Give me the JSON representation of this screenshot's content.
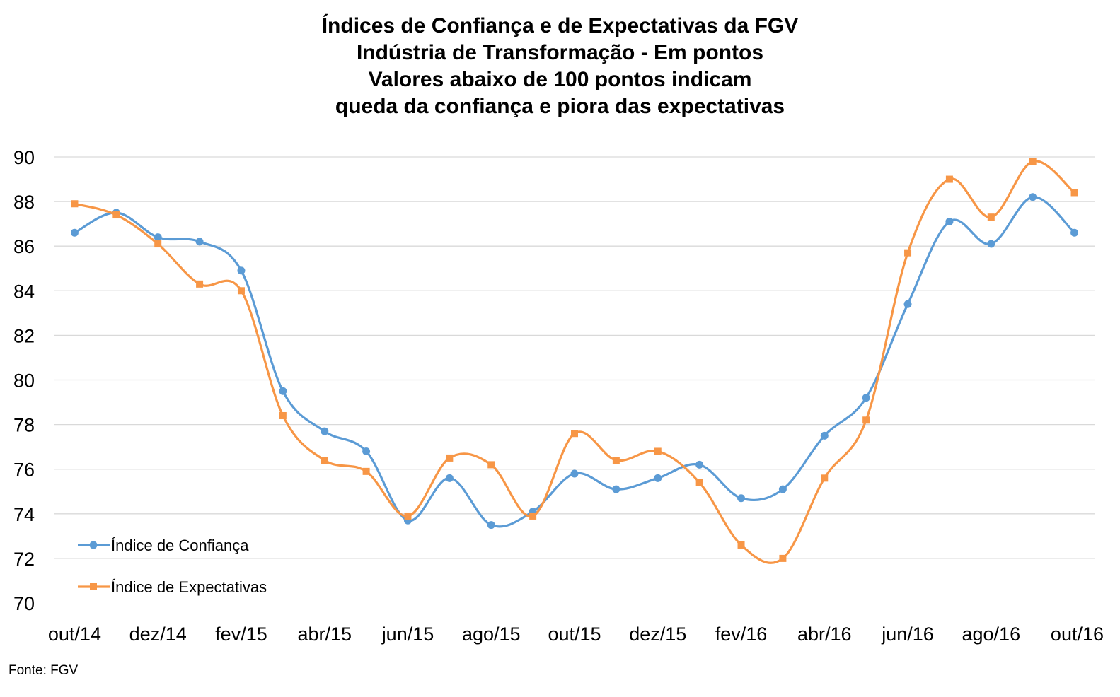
{
  "chart_data": {
    "type": "line",
    "title_lines": [
      "Índices de Confiança e de Expectativas da FGV",
      "Indústria de Transformação - Em pontos",
      "Valores abaixo de 100 pontos indicam",
      "queda da confiança e piora das expectativas"
    ],
    "categories": [
      "out/14",
      "nov/14",
      "dez/14",
      "jan/15",
      "fev/15",
      "mar/15",
      "abr/15",
      "mai/15",
      "jun/15",
      "jul/15",
      "ago/15",
      "set/15",
      "out/15",
      "nov/15",
      "dez/15",
      "jan/16",
      "fev/16",
      "mar/16",
      "abr/16",
      "mai/16",
      "jun/16",
      "jul/16",
      "ago/16",
      "set/16",
      "out/16"
    ],
    "x_tick_labels": [
      "out/14",
      "dez/14",
      "fev/15",
      "abr/15",
      "jun/15",
      "ago/15",
      "out/15",
      "dez/15",
      "fev/16",
      "abr/16",
      "jun/16",
      "ago/16",
      "out/16"
    ],
    "y_ticks": [
      70,
      72,
      74,
      76,
      78,
      80,
      82,
      84,
      86,
      88,
      90
    ],
    "ylim": [
      70,
      90
    ],
    "grid": true,
    "legend_position": "bottom-left",
    "series": [
      {
        "name": "Índice de Confiança",
        "color": "#5B9BD5",
        "marker": "circle",
        "values": [
          86.6,
          87.5,
          86.4,
          86.2,
          84.9,
          79.5,
          77.7,
          76.8,
          73.7,
          75.6,
          73.5,
          74.1,
          75.8,
          75.1,
          75.6,
          76.2,
          74.7,
          75.1,
          77.5,
          79.2,
          83.4,
          87.1,
          86.1,
          88.2,
          86.6
        ]
      },
      {
        "name": "Índice de Expectativas",
        "color": "#F79646",
        "marker": "square",
        "values": [
          87.9,
          87.4,
          86.1,
          84.3,
          84.0,
          78.4,
          76.4,
          75.9,
          73.9,
          76.5,
          76.2,
          73.9,
          77.6,
          76.4,
          76.8,
          75.4,
          72.6,
          72.0,
          75.6,
          78.2,
          85.7,
          89.0,
          87.3,
          89.8,
          88.4
        ]
      }
    ]
  },
  "source": "Fonte: FGV"
}
